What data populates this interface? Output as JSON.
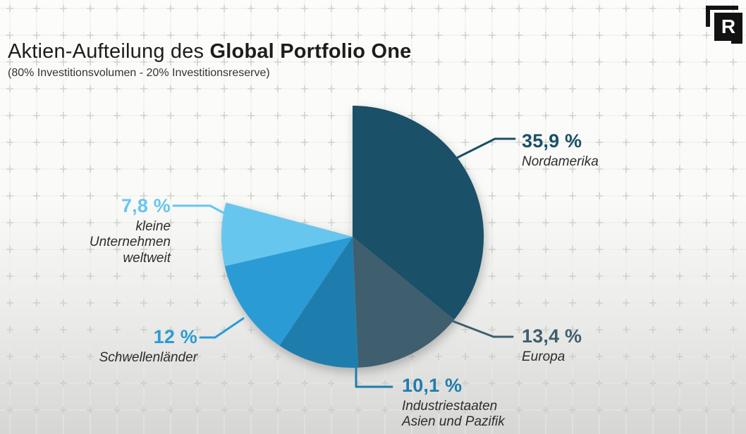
{
  "header": {
    "title_regular": "Aktien-Aufteilung des ",
    "title_bold": "Global Portfolio One",
    "subtitle": "(80% Investitionsvolumen - 20% Investitionsreserve)"
  },
  "logo": {
    "letter": "R"
  },
  "chart_data": {
    "type": "pie",
    "title": "Aktien-Aufteilung des Global Portfolio One",
    "subtitle": "(80% Investitionsvolumen - 20% Investitionsreserve)",
    "unit": "%",
    "start_angle_deg": -90,
    "direction": "clockwise",
    "empty_gap_pct": 20.8,
    "slices": [
      {
        "name": "Nordamerika",
        "value": 35.9,
        "pct_label": "35,9 %",
        "label": "Nordamerika",
        "color": "#1a5068"
      },
      {
        "name": "Europa",
        "value": 13.4,
        "pct_label": "13,4 %",
        "label": "Europa",
        "color": "#3f5e6e"
      },
      {
        "name": "Industriestaaten Asien und Pazifik",
        "value": 10.1,
        "pct_label": "10,1 %",
        "label": "Industriestaaten\nAsien und Pazifik",
        "color": "#1f7dad"
      },
      {
        "name": "Schwellenländer",
        "value": 12,
        "pct_label": "12 %",
        "label": "Schwellenländer",
        "color": "#2b9bd5"
      },
      {
        "name": "kleine Unternehmen weltweit",
        "value": 7.8,
        "pct_label": "7,8 %",
        "label": "kleine\nUnternehmen\nweltweit",
        "color": "#67c6ee"
      }
    ]
  }
}
